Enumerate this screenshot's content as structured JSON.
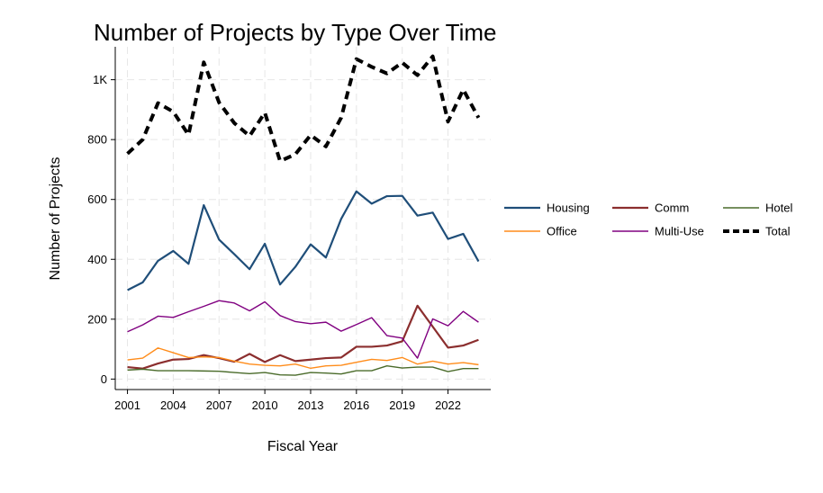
{
  "chart_data": {
    "type": "line",
    "title": "Number of Projects by Type Over Time",
    "xlabel": "Fiscal Year",
    "ylabel": "Number of Projects",
    "x": [
      2001,
      2002,
      2003,
      2004,
      2005,
      2006,
      2007,
      2008,
      2009,
      2010,
      2011,
      2012,
      2013,
      2014,
      2015,
      2016,
      2017,
      2018,
      2019,
      2020,
      2021,
      2022,
      2023,
      2024
    ],
    "x_ticks": [
      2001,
      2004,
      2007,
      2010,
      2013,
      2016,
      2019,
      2022
    ],
    "x_tick_labels": [
      "2001",
      "2004",
      "2007",
      "2010",
      "2013",
      "2016",
      "2019",
      "2022"
    ],
    "y_ticks": [
      0,
      200,
      400,
      600,
      800,
      1000
    ],
    "y_tick_labels": [
      "0",
      "200",
      "400",
      "600",
      "800",
      "1K"
    ],
    "xlim": [
      2000.2,
      2024.8
    ],
    "ylim": [
      -35,
      1110
    ],
    "grid": true,
    "legend_position": "right",
    "series": [
      {
        "name": "Housing",
        "color": "#1f4e79",
        "width": 2.2,
        "dash": "",
        "values": [
          297,
          323,
          395,
          428,
          385,
          581,
          466,
          417,
          367,
          452,
          316,
          375,
          450,
          406,
          535,
          627,
          586,
          611,
          612,
          546,
          556,
          468,
          485,
          393
        ]
      },
      {
        "name": "Comm",
        "color": "#8b2e2e",
        "width": 2.2,
        "dash": "",
        "values": [
          40,
          35,
          52,
          65,
          67,
          80,
          70,
          58,
          84,
          57,
          80,
          60,
          65,
          70,
          72,
          108,
          108,
          112,
          126,
          245,
          175,
          105,
          112,
          131
        ]
      },
      {
        "name": "Hotel",
        "color": "#4a6b2a",
        "width": 1.4,
        "dash": "",
        "values": [
          30,
          33,
          28,
          28,
          28,
          27,
          26,
          22,
          18,
          22,
          14,
          13,
          22,
          20,
          17,
          28,
          28,
          44,
          37,
          40,
          40,
          25,
          35,
          35
        ]
      },
      {
        "name": "Office",
        "color": "#ff8c1a",
        "width": 1.4,
        "dash": "",
        "values": [
          64,
          70,
          104,
          88,
          72,
          74,
          72,
          60,
          50,
          46,
          44,
          50,
          36,
          44,
          46,
          56,
          66,
          62,
          72,
          50,
          60,
          50,
          55,
          48
        ]
      },
      {
        "name": "Multi-Use",
        "color": "#800080",
        "width": 1.4,
        "dash": "",
        "values": [
          158,
          181,
          210,
          206,
          225,
          243,
          262,
          254,
          228,
          258,
          212,
          192,
          185,
          190,
          160,
          182,
          205,
          145,
          137,
          70,
          201,
          178,
          226,
          190
        ]
      },
      {
        "name": "Total",
        "color": "#000000",
        "width": 4,
        "dash": "9 6",
        "values": [
          753,
          800,
          922,
          893,
          816,
          1058,
          924,
          855,
          812,
          890,
          728,
          751,
          815,
          777,
          873,
          1069,
          1043,
          1021,
          1057,
          1015,
          1078,
          860,
          967,
          873
        ]
      }
    ],
    "legend_order": [
      "Housing",
      "Comm",
      "Hotel",
      "Office",
      "Multi-Use",
      "Total"
    ]
  }
}
